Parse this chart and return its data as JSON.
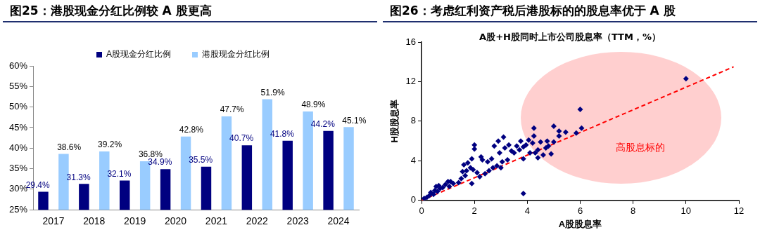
{
  "chart_data": [
    {
      "type": "bar",
      "title": "图25：港股现金分红比例较 A 股更高",
      "categories": [
        "2017",
        "2018",
        "2019",
        "2020",
        "2021",
        "2022",
        "2023",
        "2024"
      ],
      "series": [
        {
          "name": "A股现金分红比例",
          "color": "#000080",
          "values": [
            29.4,
            31.3,
            32.1,
            34.9,
            35.5,
            40.7,
            41.8,
            44.2
          ],
          "value_labels": [
            "29.4%",
            "31.3%",
            "32.1%",
            "34.9%",
            "35.5%",
            "40.7%",
            "41.8%",
            "44.2%"
          ]
        },
        {
          "name": "港股现金分红比例",
          "color": "#99ccff",
          "values": [
            38.6,
            39.2,
            36.8,
            42.8,
            47.7,
            51.9,
            48.9,
            45.1
          ],
          "value_labels": [
            "38.6%",
            "39.2%",
            "36.8%",
            "42.8%",
            "47.7%",
            "51.9%",
            "48.9%",
            "45.1%"
          ]
        }
      ],
      "ylim": [
        25,
        60
      ],
      "yticks": [
        {
          "value": 25,
          "label": "25%"
        },
        {
          "value": 30,
          "label": "30%"
        },
        {
          "value": 35,
          "label": "35%"
        },
        {
          "value": 40,
          "label": "40%"
        },
        {
          "value": 45,
          "label": "45%"
        },
        {
          "value": 50,
          "label": "50%"
        },
        {
          "value": 55,
          "label": "55%"
        },
        {
          "value": 60,
          "label": "60%"
        }
      ],
      "legend": "top",
      "grid": false
    },
    {
      "type": "scatter",
      "title": "图26：考虑红利资产税后港股标的的股息率优于 A 股",
      "subtitle": "A股+H股同时上市公司股息率（TTM，%）",
      "xlabel": "A股股息率",
      "ylabel": "H股股息率",
      "series": [
        {
          "color": "#000080",
          "marker": "diamond",
          "x": [
            0.1,
            0.2,
            0.3,
            0.35,
            0.45,
            0.5,
            0.55,
            0.6,
            0.65,
            0.7,
            0.8,
            0.9,
            1.0,
            1.05,
            1.1,
            1.2,
            1.4,
            1.5,
            1.55,
            1.6,
            1.65,
            1.7,
            1.75,
            1.85,
            1.9,
            1.9,
            1.95,
            2.0,
            2.0,
            2.1,
            2.2,
            2.25,
            2.3,
            2.4,
            2.5,
            2.55,
            2.65,
            2.7,
            2.75,
            2.85,
            2.9,
            2.95,
            3.0,
            3.05,
            3.1,
            3.15,
            3.25,
            3.3,
            3.4,
            3.5,
            3.6,
            3.7,
            3.75,
            3.85,
            3.85,
            3.85,
            3.95,
            4.05,
            4.1,
            4.2,
            4.25,
            4.25,
            4.3,
            4.4,
            4.4,
            4.5,
            4.6,
            4.7,
            4.75,
            4.8,
            4.9,
            5.0,
            5.0,
            5.2,
            5.2,
            5.45,
            5.85,
            6.0,
            6.05,
            10.0
          ],
          "values": [
            0.2,
            0.3,
            0.5,
            0.8,
            0.6,
            1.0,
            1.4,
            0.9,
            1.5,
            1.2,
            1.3,
            1.6,
            1.9,
            1.4,
            1.9,
            1.7,
            1.8,
            2.2,
            2.9,
            3.6,
            2.5,
            3.0,
            3.8,
            3.3,
            1.7,
            4.2,
            3.1,
            5.2,
            5.6,
            2.8,
            2.4,
            4.4,
            4.1,
            2.7,
            3.9,
            3.0,
            4.2,
            3.3,
            5.5,
            3.5,
            6.0,
            4.8,
            3.3,
            3.9,
            6.4,
            5.3,
            4.1,
            5.6,
            5.0,
            4.8,
            5.5,
            5.1,
            6.0,
            5.4,
            4.2,
            0.7,
            5.6,
            6.1,
            4.8,
            5.8,
            7.3,
            6.5,
            4.8,
            5.1,
            4.3,
            5.9,
            4.6,
            5.3,
            6.0,
            5.5,
            4.7,
            7.5,
            5.9,
            7.0,
            6.5,
            6.9,
            6.8,
            9.2,
            7.3,
            12.3
          ]
        },
        {
          "type": "line",
          "color": "#ff0000",
          "marker": "none",
          "line_style": "dashed",
          "x": [
            0,
            11.8
          ],
          "values": [
            0,
            13.5
          ]
        }
      ],
      "xlim": [
        0,
        12
      ],
      "xticks": [
        0,
        2,
        4,
        6,
        8,
        10,
        12
      ],
      "ylim": [
        0,
        16
      ],
      "yticks": [
        0,
        4,
        8,
        12,
        16
      ],
      "annotations": [
        "高股息标的"
      ],
      "legend": false,
      "grid": false
    }
  ]
}
